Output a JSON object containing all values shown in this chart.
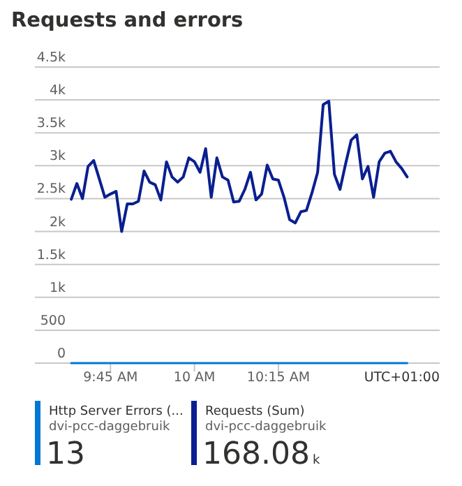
{
  "chart_data": {
    "type": "line",
    "title": "Requests and errors",
    "x": [
      9.6333,
      9.65,
      9.6667,
      9.6833,
      9.7,
      9.7167,
      9.7333,
      9.75,
      9.7667,
      9.7833,
      9.8,
      9.8167,
      9.8333,
      9.85,
      9.8667,
      9.8833,
      9.9,
      9.9167,
      9.9333,
      9.95,
      9.9667,
      9.9833,
      10,
      10.0167,
      10.0333,
      10.05,
      10.0667,
      10.0833,
      10.1,
      10.1167,
      10.1333,
      10.15,
      10.1667,
      10.1833,
      10.2,
      10.2167,
      10.2333,
      10.25,
      10.2667,
      10.2833,
      10.3,
      10.3167,
      10.3333,
      10.35,
      10.3667,
      10.3833,
      10.4,
      10.4167,
      10.4333,
      10.45,
      10.4667,
      10.4833,
      10.5,
      10.5167,
      10.5333,
      10.55,
      10.5667,
      10.5833,
      10.6,
      10.6167,
      10.6333
    ],
    "series": [
      {
        "name": "Http Server Errors (...",
        "color": "#0078d4",
        "values": [
          0,
          0,
          0,
          0,
          0,
          0,
          0,
          0,
          0,
          0,
          0,
          0,
          0,
          0,
          0,
          0,
          0,
          0,
          0,
          0,
          0,
          0,
          0,
          0,
          0,
          0,
          0,
          0,
          0,
          0,
          0,
          0,
          0,
          0,
          0,
          0,
          0,
          0,
          0,
          0,
          0,
          0,
          0,
          0,
          0,
          0,
          0,
          0,
          0,
          0,
          0,
          0,
          0,
          0,
          0,
          0,
          0,
          0,
          0,
          0,
          0
        ]
      },
      {
        "name": "Requests (Sum)",
        "color": "#0a1f8f",
        "values": [
          2490,
          2730,
          2500,
          2990,
          3080,
          2800,
          2520,
          2570,
          2610,
          2000,
          2420,
          2420,
          2460,
          2920,
          2750,
          2710,
          2480,
          3060,
          2830,
          2750,
          2830,
          3120,
          3060,
          2900,
          3260,
          2520,
          3120,
          2830,
          2780,
          2450,
          2460,
          2640,
          2900,
          2480,
          2570,
          3010,
          2800,
          2780,
          2520,
          2180,
          2130,
          2300,
          2320,
          2590,
          2900,
          3930,
          3980,
          2870,
          2640,
          3030,
          3390,
          3470,
          2800,
          2990,
          2520,
          3060,
          3190,
          3220,
          3060,
          2960,
          2830
        ]
      }
    ],
    "xlim": [
      9.525,
      10.73
    ],
    "xticks": [
      {
        "value": 9.75,
        "label": "9:45 AM"
      },
      {
        "value": 10,
        "label": "10 AM"
      },
      {
        "value": 10.25,
        "label": "10:15 AM"
      }
    ],
    "ylim": [
      0,
      4500
    ],
    "yticks": [
      0,
      500,
      {
        "value": 1000,
        "label": "1k"
      },
      {
        "value": 1500,
        "label": "1.5k"
      },
      {
        "value": 2000,
        "label": "2k"
      },
      {
        "value": 2500,
        "label": "2.5k"
      },
      {
        "value": 3000,
        "label": "3k"
      },
      {
        "value": 3500,
        "label": "3.5k"
      },
      {
        "value": 4000,
        "label": "4k"
      },
      {
        "value": 4500,
        "label": "4.5k"
      }
    ],
    "grid": "y",
    "legend": "bottom",
    "annotations": [
      "UTC+01:00",
      "dvi-pcc-daggebruik",
      "13",
      "dvi-pcc-daggebruik",
      "168.08k"
    ]
  }
}
